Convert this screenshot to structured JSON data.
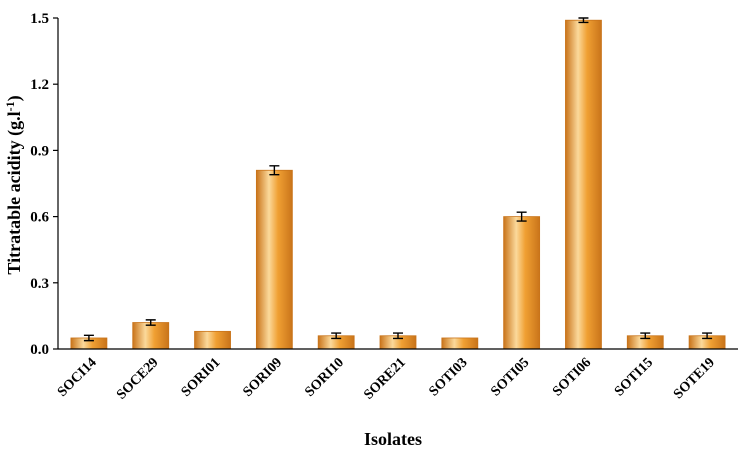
{
  "chart_data": {
    "type": "bar",
    "categories": [
      "SOCI14",
      "SOCE29",
      "SORI01",
      "SORI09",
      "SORI10",
      "SORE21",
      "SOTI03",
      "SOTI05",
      "SOTI06",
      "SOTI15",
      "SOTE19"
    ],
    "series": [
      {
        "values": [
          0.05,
          0.12,
          0.08,
          0.81,
          0.06,
          0.06,
          0.05,
          0.6,
          1.49,
          0.06,
          0.06
        ],
        "errors": [
          0.012,
          0.012,
          0.0,
          0.02,
          0.012,
          0.012,
          0.0,
          0.02,
          0.01,
          0.012,
          0.012
        ]
      }
    ],
    "xlabel": "Isolates",
    "ylabel_main": "Titratable acidity (g.l",
    "ylabel_sup": "-1",
    "ylabel_close": ")",
    "ylim": [
      0,
      1.5
    ],
    "yticks": [
      "0.0",
      "0.3",
      "0.6",
      "0.9",
      "1.2",
      "1.5"
    ],
    "ytick_values": [
      0,
      0.3,
      0.6,
      0.9,
      1.2,
      1.5
    ],
    "grid": false,
    "bar_color": "#f0a033",
    "bar_highlight": "#fbd99b",
    "bar_shadow": "#c9741a"
  }
}
